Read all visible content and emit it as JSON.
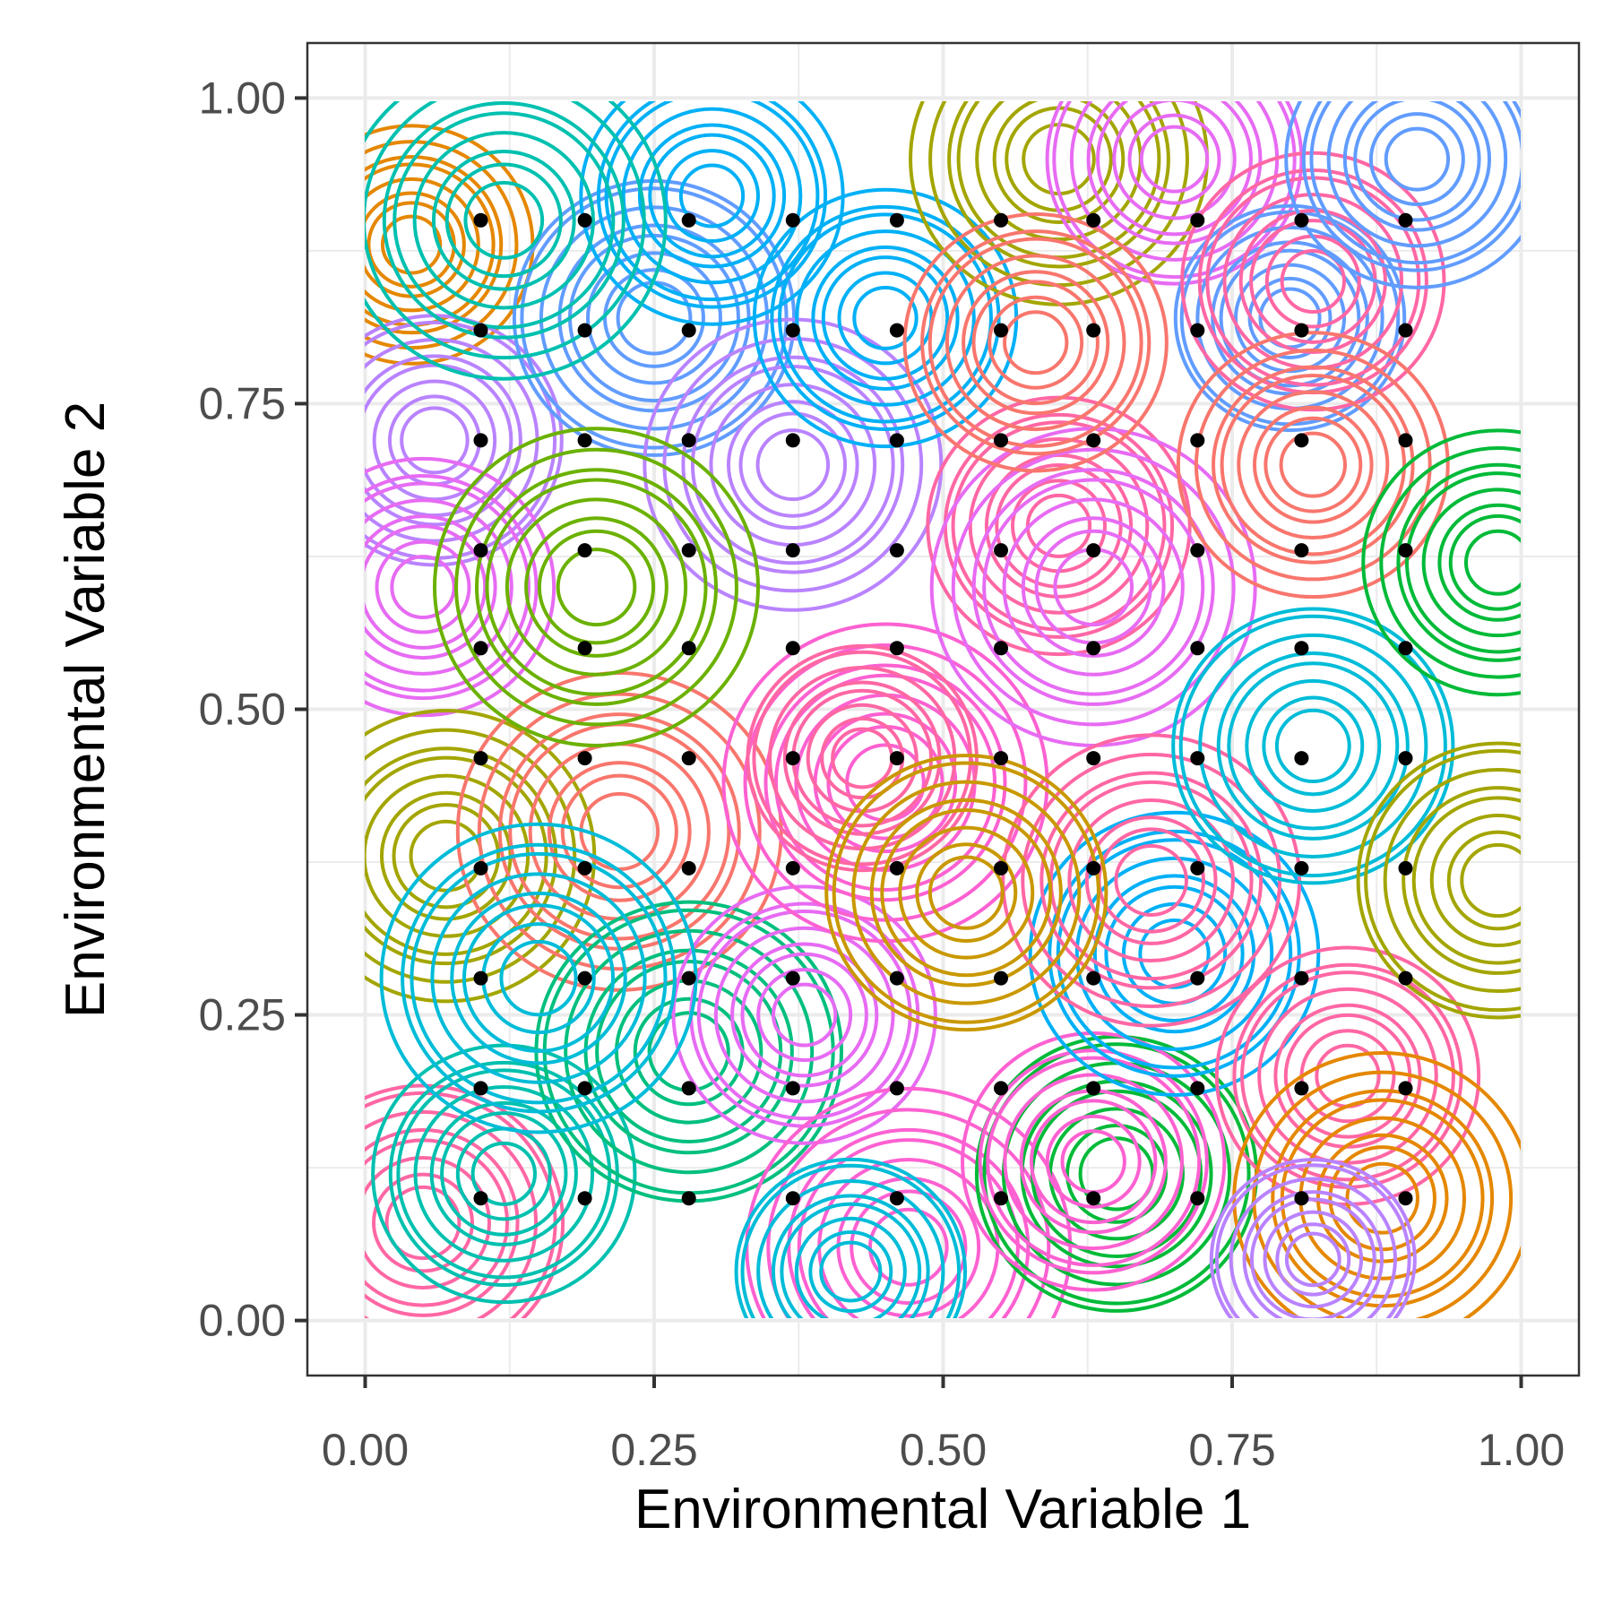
{
  "chart_data": {
    "type": "scatter",
    "title": "",
    "xlabel": "Environmental Variable 1",
    "ylabel": "Environmental Variable 2",
    "xlim": [
      -0.05,
      1.05
    ],
    "ylim": [
      -0.045,
      1.045
    ],
    "x_ticks": [
      "0.00",
      "0.25",
      "0.50",
      "0.75",
      "1.00"
    ],
    "y_ticks": [
      "0.00",
      "0.25",
      "0.50",
      "0.75",
      "1.00"
    ],
    "x_tick_values": [
      0,
      0.25,
      0.5,
      0.75,
      1
    ],
    "y_tick_values": [
      0,
      0.25,
      0.5,
      0.75,
      1
    ],
    "grid": true,
    "legend": "none",
    "points": {
      "color": "#000000",
      "x": [
        0.1,
        0.19,
        0.28,
        0.37,
        0.46,
        0.55,
        0.63,
        0.72,
        0.81,
        0.9
      ],
      "y": [
        0.1,
        0.19,
        0.28,
        0.37,
        0.46,
        0.55,
        0.63,
        0.72,
        0.81,
        0.9
      ]
    },
    "contour_palette": [
      "#F8766D",
      "#E58700",
      "#C99800",
      "#A3A500",
      "#6BB100",
      "#00BA38",
      "#00BF7D",
      "#00C0AF",
      "#00BCD8",
      "#00B0F6",
      "#619CFF",
      "#B983FF",
      "#E76BF3",
      "#FD61D1",
      "#FF67A4"
    ],
    "contour_centers": [
      {
        "x": 0.04,
        "y": 0.88,
        "sd": 0.09,
        "color": "#E58700"
      },
      {
        "x": 0.06,
        "y": 0.72,
        "sd": 0.1,
        "color": "#B983FF"
      },
      {
        "x": 0.05,
        "y": 0.6,
        "sd": 0.1,
        "color": "#E76BF3"
      },
      {
        "x": 0.07,
        "y": 0.38,
        "sd": 0.11,
        "color": "#A3A500"
      },
      {
        "x": 0.05,
        "y": 0.08,
        "sd": 0.11,
        "color": "#FF67A4"
      },
      {
        "x": 0.12,
        "y": 0.12,
        "sd": 0.1,
        "color": "#00C0AF"
      },
      {
        "x": 0.22,
        "y": 0.4,
        "sd": 0.12,
        "color": "#F8766D"
      },
      {
        "x": 0.25,
        "y": 0.82,
        "sd": 0.11,
        "color": "#619CFF"
      },
      {
        "x": 0.3,
        "y": 0.92,
        "sd": 0.1,
        "color": "#00B0F6"
      },
      {
        "x": 0.37,
        "y": 0.7,
        "sd": 0.11,
        "color": "#B983FF"
      },
      {
        "x": 0.28,
        "y": 0.22,
        "sd": 0.12,
        "color": "#00BF7D"
      },
      {
        "x": 0.38,
        "y": 0.25,
        "sd": 0.1,
        "color": "#E76BF3"
      },
      {
        "x": 0.45,
        "y": 0.44,
        "sd": 0.12,
        "color": "#FD61D1"
      },
      {
        "x": 0.43,
        "y": 0.46,
        "sd": 0.09,
        "color": "#FF67A4"
      },
      {
        "x": 0.45,
        "y": 0.82,
        "sd": 0.1,
        "color": "#00B0F6"
      },
      {
        "x": 0.47,
        "y": 0.06,
        "sd": 0.12,
        "color": "#FD61D1"
      },
      {
        "x": 0.42,
        "y": 0.04,
        "sd": 0.09,
        "color": "#00BCD8"
      },
      {
        "x": 0.6,
        "y": 0.65,
        "sd": 0.1,
        "color": "#FF67A4"
      },
      {
        "x": 0.63,
        "y": 0.6,
        "sd": 0.12,
        "color": "#E76BF3"
      },
      {
        "x": 0.65,
        "y": 0.12,
        "sd": 0.11,
        "color": "#00BA38"
      },
      {
        "x": 0.63,
        "y": 0.13,
        "sd": 0.1,
        "color": "#FD61D1"
      },
      {
        "x": 0.6,
        "y": 0.95,
        "sd": 0.11,
        "color": "#A3A500"
      },
      {
        "x": 0.7,
        "y": 0.95,
        "sd": 0.1,
        "color": "#E76BF3"
      },
      {
        "x": 0.7,
        "y": 0.3,
        "sd": 0.11,
        "color": "#00B0F6"
      },
      {
        "x": 0.68,
        "y": 0.36,
        "sd": 0.11,
        "color": "#FF67A4"
      },
      {
        "x": 0.8,
        "y": 0.82,
        "sd": 0.09,
        "color": "#619CFF"
      },
      {
        "x": 0.82,
        "y": 0.85,
        "sd": 0.1,
        "color": "#FF67A4"
      },
      {
        "x": 0.82,
        "y": 0.7,
        "sd": 0.1,
        "color": "#F8766D"
      },
      {
        "x": 0.82,
        "y": 0.47,
        "sd": 0.11,
        "color": "#00BCD8"
      },
      {
        "x": 0.85,
        "y": 0.2,
        "sd": 0.1,
        "color": "#FF67A4"
      },
      {
        "x": 0.88,
        "y": 0.1,
        "sd": 0.11,
        "color": "#E58700"
      },
      {
        "x": 0.82,
        "y": 0.05,
        "sd": 0.08,
        "color": "#B983FF"
      },
      {
        "x": 0.91,
        "y": 0.95,
        "sd": 0.1,
        "color": "#619CFF"
      },
      {
        "x": 0.98,
        "y": 0.62,
        "sd": 0.1,
        "color": "#00BA38"
      },
      {
        "x": 0.98,
        "y": 0.36,
        "sd": 0.11,
        "color": "#A3A500"
      },
      {
        "x": 0.15,
        "y": 0.28,
        "sd": 0.12,
        "color": "#00BCD8"
      },
      {
        "x": 0.2,
        "y": 0.6,
        "sd": 0.12,
        "color": "#6BB100"
      },
      {
        "x": 0.52,
        "y": 0.35,
        "sd": 0.11,
        "color": "#C99800"
      },
      {
        "x": 0.58,
        "y": 0.8,
        "sd": 0.1,
        "color": "#F8766D"
      },
      {
        "x": 0.12,
        "y": 0.9,
        "sd": 0.12,
        "color": "#00C0AF"
      }
    ]
  }
}
